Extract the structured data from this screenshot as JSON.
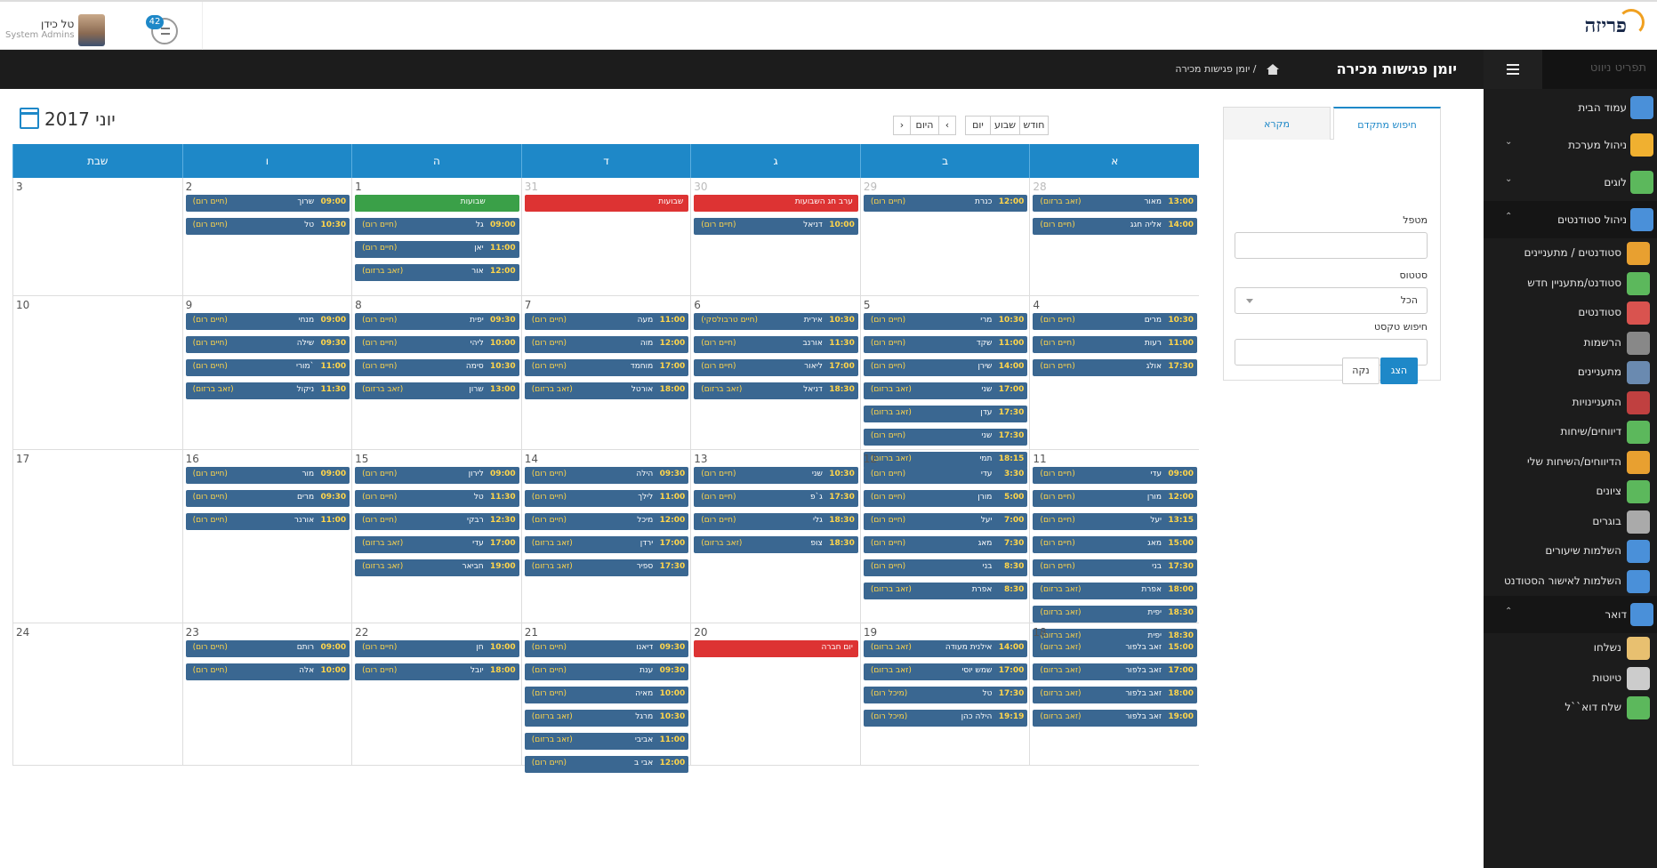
{
  "topbar": {
    "user_name": "טל כידן",
    "user_role": "System Admins",
    "notif_count": "42",
    "logo_text": "פריזה"
  },
  "page": {
    "title": "יומן פגישות מכירה",
    "breadcrumb": "יומן פגישות מכירה"
  },
  "sidebar": {
    "header": "תפריט ניווט",
    "items": [
      {
        "label": "עמוד הבית",
        "icon": "home-icon",
        "color": "#4a90d9",
        "type": "top"
      },
      {
        "label": "ניהול מערכת",
        "icon": "gears-icon",
        "color": "#f0b030",
        "type": "top",
        "chevron": "⌄"
      },
      {
        "label": "לוגים",
        "icon": "clock-icon",
        "color": "#5cb85c",
        "type": "top",
        "chevron": "⌄"
      },
      {
        "label": "ניהול סטודנטים",
        "icon": "students-icon",
        "color": "#4a90d9",
        "type": "sec",
        "chevron": "⌃"
      },
      {
        "label": "סטודנטים / מתעניינים",
        "icon": "people-icon",
        "color": "#e8a030",
        "type": "sub"
      },
      {
        "label": "סטודנט/מתעניין חדש",
        "icon": "add-user-icon",
        "color": "#5cb85c",
        "type": "sub"
      },
      {
        "label": "סטודנטים",
        "icon": "users-icon",
        "color": "#d9534f",
        "type": "sub"
      },
      {
        "label": "הרשמות",
        "icon": "graduation-icon",
        "color": "#888888",
        "type": "sub"
      },
      {
        "label": "מתעניינים",
        "icon": "contacts-icon",
        "color": "#6a8ab0",
        "type": "sub"
      },
      {
        "label": "התעניינויות",
        "icon": "pin-icon",
        "color": "#c04040",
        "type": "sub"
      },
      {
        "label": "דיווחים/שיחות",
        "icon": "chat-icon",
        "color": "#5cb85c",
        "type": "sub"
      },
      {
        "label": "הדיווחים/השיחות שלי",
        "icon": "phone-icon",
        "color": "#e8a030",
        "type": "sub"
      },
      {
        "label": "ציונים",
        "icon": "checkmark-icon",
        "color": "#5cb85c",
        "type": "sub"
      },
      {
        "label": "בוגרים",
        "icon": "graduate-icon",
        "color": "#aaaaaa",
        "type": "sub"
      },
      {
        "label": "השלמות שיעורים",
        "icon": "books-icon",
        "color": "#4a90d9",
        "type": "sub"
      },
      {
        "label": "השלמות לאישור הסטודנט",
        "icon": "book-check-icon",
        "color": "#4a90d9",
        "type": "sub"
      },
      {
        "label": "דואר",
        "icon": "mail-icon",
        "color": "#4a90d9",
        "type": "sec",
        "chevron": "⌃"
      },
      {
        "label": "נשלחו",
        "icon": "envelope-icon",
        "color": "#e8c070",
        "type": "sub"
      },
      {
        "label": "טיוטות",
        "icon": "draft-icon",
        "color": "#cccccc",
        "type": "sub"
      },
      {
        "label": "שלח דוא``ל",
        "icon": "send-mail-icon",
        "color": "#5cb85c",
        "type": "sub"
      }
    ]
  },
  "search_panel": {
    "tab_advanced": "חיפוש מתקדם",
    "tab_legend": "מקרא",
    "label_therapist": "מטפל",
    "label_status": "סטטוס",
    "status_value": "הכל",
    "label_text": "חיפוש טקסט",
    "btn_show": "הצג",
    "btn_clear": "נקה"
  },
  "calendar": {
    "title": "יוני 2017",
    "btn_month": "חודש",
    "btn_week": "שבוע",
    "btn_day": "יום",
    "btn_today": "היום",
    "btn_prev": "‹",
    "btn_next": "›",
    "day_names": [
      "א",
      "ב",
      "ג",
      "ד",
      "ה",
      "ו",
      "שבת"
    ],
    "weeks": [
      {
        "days": [
          {
            "num": "28",
            "muted": true,
            "events": [
              [
                "13:00",
                "מאור",
                "(זאב ברזום)"
              ],
              [
                "14:00",
                "אליה חגג",
                "(חיים רום)"
              ]
            ]
          },
          {
            "num": "29",
            "muted": true,
            "events": [
              [
                "12:00",
                "כנרת",
                "(חיים רום)"
              ]
            ]
          },
          {
            "num": "30",
            "muted": true,
            "events": [
              [
                "",
                "ערב חג השבועות",
                "",
                "holiday"
              ],
              [
                "10:00",
                "דניאל",
                "(חיים רום)"
              ]
            ]
          },
          {
            "num": "31",
            "muted": true,
            "events": [
              [
                "",
                "שבועות",
                "",
                "holiday"
              ]
            ]
          },
          {
            "num": "1",
            "events": [
              [
                "",
                "שבועות",
                "",
                "green"
              ],
              [
                "09:00",
                "גל",
                "(חיים רום)"
              ],
              [
                "11:00",
                "יאן",
                "(חיים רום)"
              ],
              [
                "12:00",
                "אור",
                "(זאב ברזום)"
              ]
            ]
          },
          {
            "num": "2",
            "events": [
              [
                "09:00",
                "שרוך",
                "(חיים רום)"
              ],
              [
                "10:30",
                "טל",
                "(חיים רום)"
              ]
            ]
          },
          {
            "num": "3",
            "events": []
          }
        ]
      },
      {
        "days": [
          {
            "num": "4",
            "events": [
              [
                "10:30",
                "מרים",
                "(חיים רום)"
              ],
              [
                "11:00",
                "רעות",
                "(חיים רום)"
              ],
              [
                "17:30",
                "אולג",
                "(חיים רום)"
              ]
            ]
          },
          {
            "num": "5",
            "events": [
              [
                "10:30",
                "מרי",
                "(חיים רום)"
              ],
              [
                "11:00",
                "שקד",
                "(חיים רום)"
              ],
              [
                "14:00",
                "שירן",
                "(חיים רום)"
              ],
              [
                "17:00",
                "שני",
                "(זאב ברזום)"
              ],
              [
                "17:30",
                "עדן",
                "(זאב ברזום)"
              ],
              [
                "17:30",
                "שני",
                "(חיים רום)"
              ],
              [
                "18:15",
                "תמי",
                "(זאב ברזום)"
              ]
            ]
          },
          {
            "num": "6",
            "events": [
              [
                "10:30",
                "אירית",
                "(חיים טרבולסקי)"
              ],
              [
                "11:30",
                "אורנב",
                "(חיים רום)"
              ],
              [
                "17:00",
                "ליאור",
                "(חיים רום)"
              ],
              [
                "18:30",
                "דניאל",
                "(זאב ברזום)"
              ]
            ]
          },
          {
            "num": "7",
            "events": [
              [
                "11:00",
                "מעה",
                "(חיים רום)"
              ],
              [
                "12:00",
                "מוה",
                "(חיים רום)"
              ],
              [
                "17:00",
                "מוחמד",
                "(חיים רום)"
              ],
              [
                "18:00",
                "אורטל",
                "(זאב ברזום)"
              ]
            ]
          },
          {
            "num": "8",
            "events": [
              [
                "09:30",
                "יפית",
                "(חיים רום)"
              ],
              [
                "10:00",
                "ליהי",
                "(חיים רום)"
              ],
              [
                "10:30",
                "סימה",
                "(חיים רום)"
              ],
              [
                "13:00",
                "שרון",
                "(זאב ברזום)"
              ]
            ]
          },
          {
            "num": "9",
            "events": [
              [
                "09:00",
                "מנחי",
                "(חיים רום)"
              ],
              [
                "09:30",
                "שילה",
                "(חיים רום)"
              ],
              [
                "11:00",
                "מורי`",
                "(חיים רום)"
              ],
              [
                "11:30",
                "ניקול",
                "(זאב ברזום)"
              ]
            ]
          },
          {
            "num": "10",
            "events": []
          }
        ]
      },
      {
        "days": [
          {
            "num": "11",
            "events": [
              [
                "09:00",
                "עדי",
                "(חיים רום)"
              ],
              [
                "12:00",
                "מורן",
                "(חיים רום)"
              ],
              [
                "13:15",
                "יעל",
                "(חיים רום)"
              ],
              [
                "15:00",
                "מאג",
                "(חיים רום)"
              ],
              [
                "17:30",
                "בני",
                "(חיים רום)"
              ],
              [
                "18:00",
                "אפרת",
                "(זאב ברזום)"
              ],
              [
                "18:30",
                "יפית",
                "(זאב ברזום)"
              ],
              [
                "18:30",
                "יפית",
                "(זאב ברזום)"
              ]
            ]
          },
          {
            "num": "12",
            "events": [
              [
                "3:30",
                "עדי",
                "(חיים רום)"
              ],
              [
                "5:00",
                "מורן",
                "(חיים רום)"
              ],
              [
                "7:00",
                "יעל",
                "(חיים רום)"
              ],
              [
                "7:30",
                "מאג",
                "(חיים רום)"
              ],
              [
                "8:30",
                "בני",
                "(חיים רום)"
              ],
              [
                "8:30",
                "אפרת",
                "(זאב ברזום)"
              ]
            ]
          },
          {
            "num": "13",
            "events": [
              [
                "10:30",
                "שני",
                "(חיים רום)"
              ],
              [
                "17:30",
                "ג`פ",
                "(חיים רום)"
              ],
              [
                "18:30",
                "גלי",
                "(חיים רום)"
              ],
              [
                "18:30",
                "צופ",
                "(זאב ברזום)"
              ]
            ]
          },
          {
            "num": "14",
            "events": [
              [
                "09:30",
                "הילה",
                "(חיים רום)"
              ],
              [
                "11:00",
                "לילך",
                "(חיים רום)"
              ],
              [
                "12:00",
                "מיכל",
                "(חיים רום)"
              ],
              [
                "17:00",
                "ירדן",
                "(זאב ברזום)"
              ],
              [
                "17:30",
                "ספיר",
                "(זאב ברזום)"
              ]
            ]
          },
          {
            "num": "15",
            "events": [
              [
                "09:00",
                "לירון",
                "(חיים רום)"
              ],
              [
                "11:30",
                "טל",
                "(חיים רום)"
              ],
              [
                "12:30",
                "רבקי",
                "(חיים רום)"
              ],
              [
                "17:00",
                "עדי",
                "(זאב ברזום)"
              ],
              [
                "19:00",
                "חביאר",
                "(זאב ברזום)"
              ]
            ]
          },
          {
            "num": "16",
            "events": [
              [
                "09:00",
                "מור",
                "(חיים רום)"
              ],
              [
                "09:30",
                "מרים",
                "(חיים רום)"
              ],
              [
                "11:00",
                "אורנר",
                "(חיים רום)"
              ]
            ]
          },
          {
            "num": "17",
            "events": []
          }
        ]
      },
      {
        "days": [
          {
            "num": "18",
            "events": [
              [
                "15:00",
                "זאב בלפור",
                "(זאב ברזום)"
              ],
              [
                "17:00",
                "זאב בלפור",
                "(זאב ברזום)"
              ],
              [
                "18:00",
                "זאב בלפור",
                "(זאב ברזום)"
              ],
              [
                "19:00",
                "זאב בלפור",
                "(זאב ברזום)"
              ]
            ]
          },
          {
            "num": "19",
            "events": [
              [
                "14:00",
                "אילנית מעודה",
                "(זאב ברזום)"
              ],
              [
                "17:00",
                "שמש יוסי",
                "(זאב ברזום)"
              ],
              [
                "17:30",
                "טל",
                "(מיכל רום)"
              ],
              [
                "19:19",
                "הילה כהן",
                "(מיכל רום)"
              ]
            ]
          },
          {
            "num": "20",
            "events": [
              [
                "",
                "יום חברה",
                "",
                "holiday"
              ]
            ]
          },
          {
            "num": "21",
            "events": [
              [
                "09:30",
                "דיאנו",
                "(חיים רום)"
              ],
              [
                "09:30",
                "ענת",
                "(חיים רום)"
              ],
              [
                "10:00",
                "מאיה",
                "(חיים רום)"
              ],
              [
                "10:30",
                "מרגל",
                "(זאב ברזום)"
              ],
              [
                "11:00",
                "אביבי",
                "(זאב ברזום)"
              ],
              [
                "12:00",
                "אבי ב",
                "(חיים רום)"
              ]
            ]
          },
          {
            "num": "22",
            "events": [
              [
                "10:00",
                "חן",
                "(חיים רום)"
              ],
              [
                "18:00",
                "יובל",
                "(חיים רום)"
              ]
            ]
          },
          {
            "num": "23",
            "events": [
              [
                "09:00",
                "רותם",
                "(חיים רום)"
              ],
              [
                "10:00",
                "אלה",
                "(חיים רום)"
              ]
            ]
          },
          {
            "num": "24",
            "events": []
          }
        ]
      }
    ]
  }
}
